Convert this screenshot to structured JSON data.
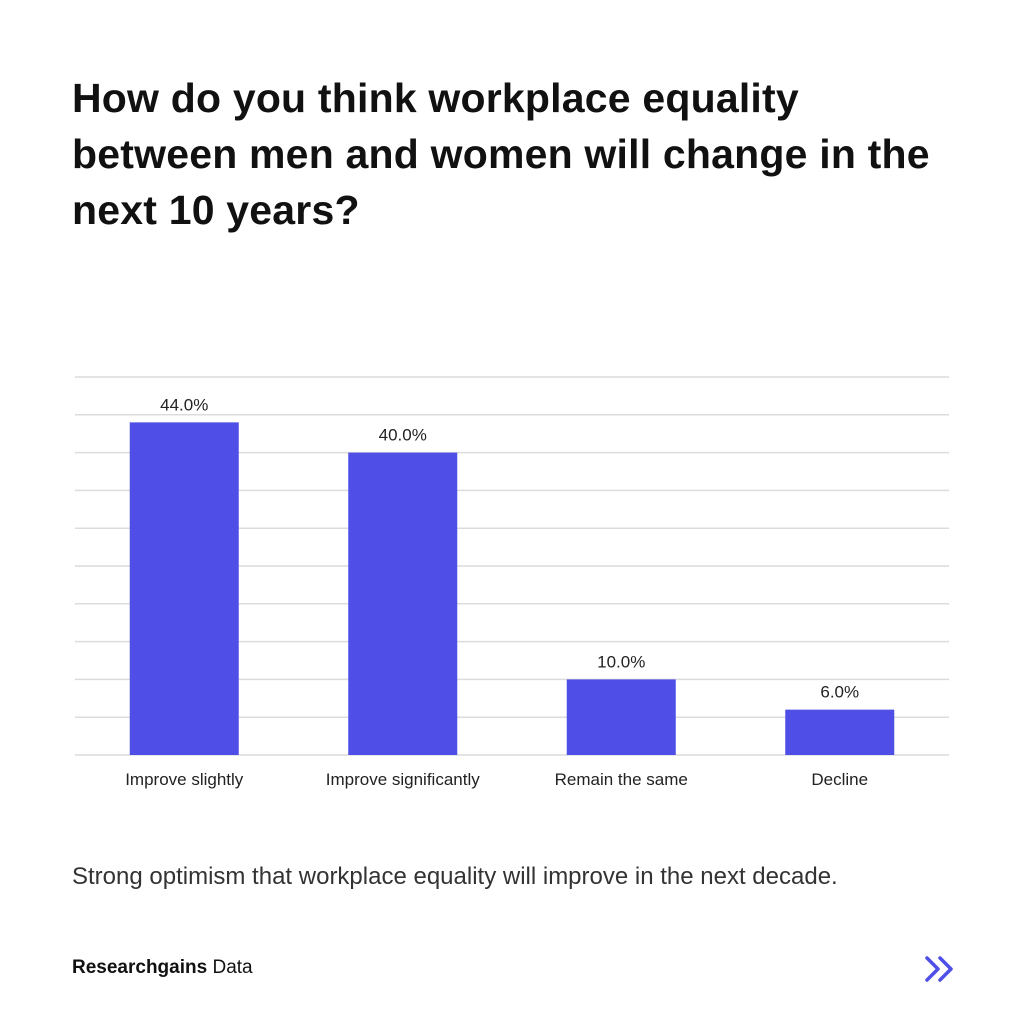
{
  "title": "How do you think workplace equality between men and women will change in the next 10 years?",
  "chart_data": {
    "type": "bar",
    "title": "How do you think workplace equality between men and women will change in the next 10 years?",
    "categories": [
      "Improve slightly",
      "Improve significantly",
      "Remain the same",
      "Decline"
    ],
    "values": [
      44.0,
      40.0,
      10.0,
      6.0
    ],
    "data_labels": [
      "44.0%",
      "40.0%",
      "10.0%",
      "6.0%"
    ],
    "xlabel": "",
    "ylabel": "",
    "ylim": [
      0,
      50
    ],
    "grid_step": 5,
    "grid": true,
    "bar_color": "#4F4FE8",
    "grid_color": "#DCDCDC"
  },
  "caption": "Strong optimism that workplace equality will improve in the next decade.",
  "source": {
    "brand": "Researchgains",
    "suffix": " Data"
  },
  "next_icon": "double-chevron-right-icon",
  "accent": "#4F4FE8"
}
